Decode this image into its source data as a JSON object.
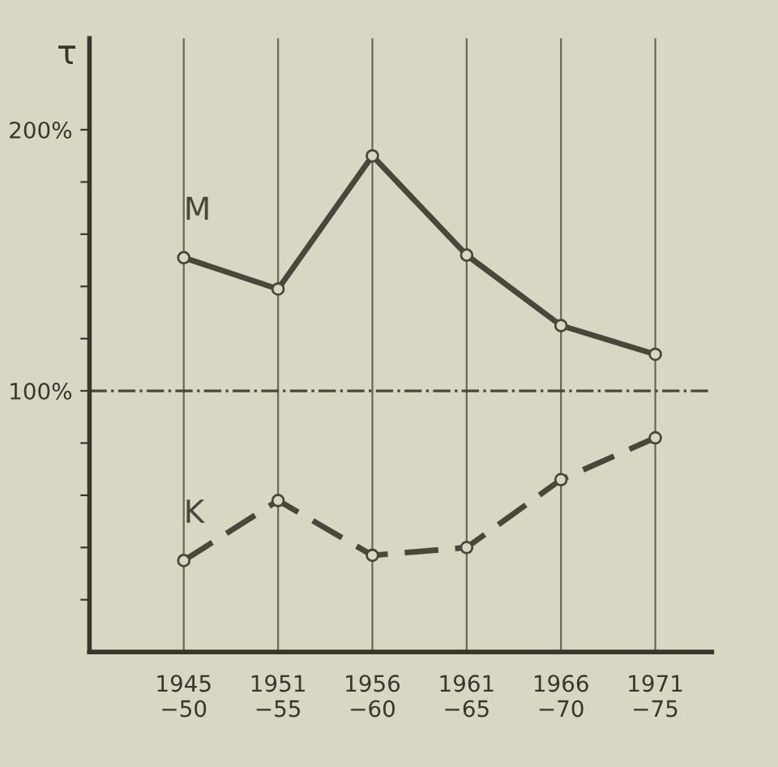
{
  "chart_data": {
    "type": "line",
    "ylabel": "τ",
    "categories": [
      "1945\n−50",
      "1951\n−55",
      "1956\n−60",
      "1961\n−65",
      "1966\n−70",
      "1971\n−75"
    ],
    "series": [
      {
        "name": "M",
        "color": "#4a463c",
        "line_style": "solid",
        "values": [
          151,
          139,
          190,
          152,
          125,
          114
        ]
      },
      {
        "name": "K",
        "color": "#4a463c",
        "line_style": "dashed",
        "values": [
          35,
          58,
          37,
          40,
          66,
          82
        ]
      }
    ],
    "ylim": [
      0,
      235
    ],
    "yticks": [
      {
        "value": 20,
        "label": null
      },
      {
        "value": 40,
        "label": null
      },
      {
        "value": 60,
        "label": null
      },
      {
        "value": 80,
        "label": null
      },
      {
        "value": 100,
        "label": "100%"
      },
      {
        "value": 120,
        "label": null
      },
      {
        "value": 140,
        "label": null
      },
      {
        "value": 160,
        "label": null
      },
      {
        "value": 180,
        "label": null
      },
      {
        "value": 200,
        "label": "200%"
      }
    ],
    "ref_lines": [
      {
        "axis": "y",
        "value": 100,
        "label": null,
        "line_style": "dashdot",
        "color": "#4a463c"
      }
    ],
    "grid": "x",
    "marker": "circle",
    "legend": false
  }
}
